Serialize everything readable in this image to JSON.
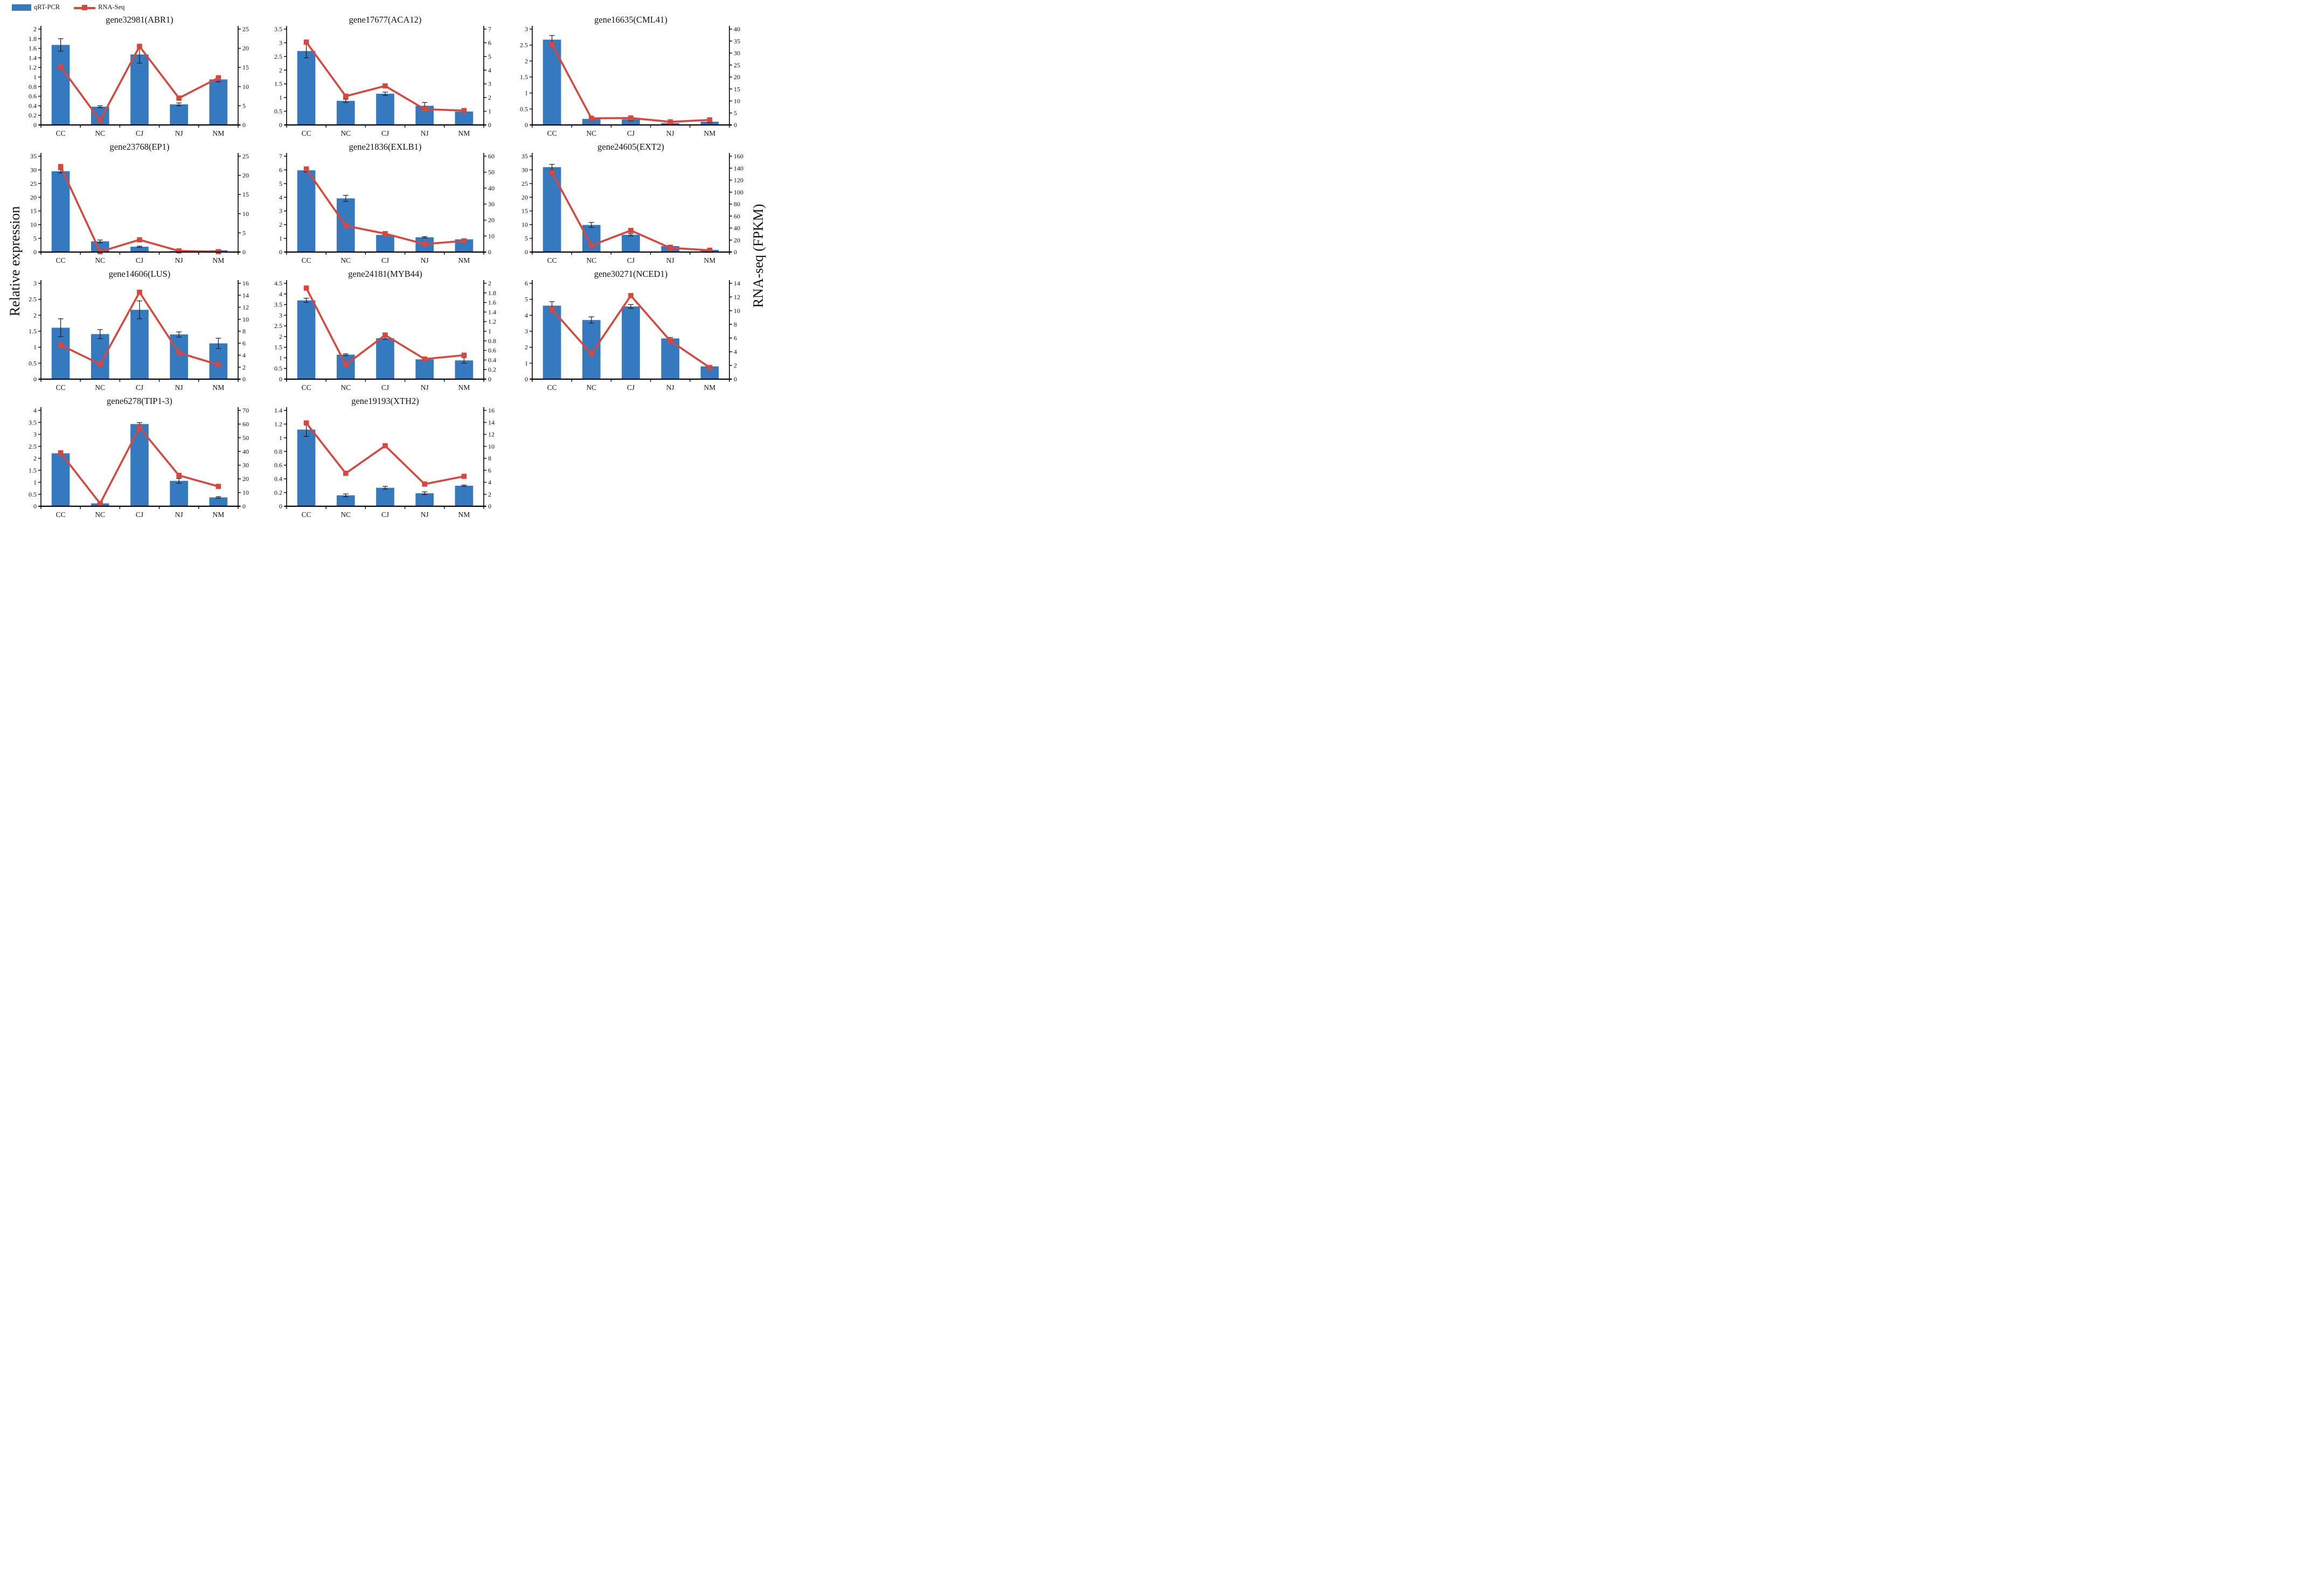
{
  "legend": {
    "qrt_label": "qRT-PCR",
    "rna_label": "RNA-Seq"
  },
  "axis_titles": {
    "left": "Relative expression",
    "right": "RNA-seq (FPKM)"
  },
  "colors": {
    "bar": "#3579BE",
    "line": "#D9473C",
    "error": "#1a1a1a",
    "axis": "#000000"
  },
  "categories": [
    "CC",
    "NC",
    "CJ",
    "NJ",
    "NM"
  ],
  "chart_data": [
    {
      "type": "bar",
      "title": "gene32981(ABR1)",
      "categories": [
        "CC",
        "NC",
        "CJ",
        "NJ",
        "NM"
      ],
      "series": [
        {
          "name": "qRT-PCR",
          "axis": "left",
          "values": [
            1.67,
            0.38,
            1.47,
            0.43,
            0.95
          ],
          "errors": [
            0.13,
            0.02,
            0.18,
            0.03,
            0.05
          ]
        },
        {
          "name": "RNA-Seq",
          "axis": "right",
          "values": [
            15.2,
            1.2,
            20.5,
            7.0,
            12.3
          ]
        }
      ],
      "left_axis": {
        "min": 0,
        "max": 2,
        "step": 0.2
      },
      "right_axis": {
        "min": 0,
        "max": 25,
        "step": 5
      }
    },
    {
      "type": "bar",
      "title": "gene17677(ACA12)",
      "categories": [
        "CC",
        "NC",
        "CJ",
        "NJ",
        "NM"
      ],
      "series": [
        {
          "name": "qRT-PCR",
          "axis": "left",
          "values": [
            2.7,
            0.88,
            1.14,
            0.7,
            0.49
          ],
          "errors": [
            0.25,
            0.06,
            0.06,
            0.12,
            0.03
          ]
        },
        {
          "name": "RNA-Seq",
          "axis": "right",
          "values": [
            6.05,
            2.1,
            2.85,
            1.15,
            1.05
          ]
        }
      ],
      "left_axis": {
        "min": 0,
        "max": 3.5,
        "step": 0.5
      },
      "right_axis": {
        "min": 0,
        "max": 7,
        "step": 1
      }
    },
    {
      "type": "bar",
      "title": "gene16635(CML41)",
      "categories": [
        "CC",
        "NC",
        "CJ",
        "NJ",
        "NM"
      ],
      "series": [
        {
          "name": "qRT-PCR",
          "axis": "left",
          "values": [
            2.67,
            0.19,
            0.18,
            0.06,
            0.1
          ],
          "errors": [
            0.13,
            0.05,
            0.05,
            0.03,
            0.03
          ]
        },
        {
          "name": "RNA-Seq",
          "axis": "right",
          "values": [
            33.7,
            2.8,
            2.9,
            1.3,
            2.1
          ]
        }
      ],
      "left_axis": {
        "min": 0,
        "max": 3,
        "step": 0.5
      },
      "right_axis": {
        "min": 0,
        "max": 40,
        "step": 5
      }
    },
    {
      "type": "bar",
      "title": "gene23768(EP1)",
      "categories": [
        "CC",
        "NC",
        "CJ",
        "NJ",
        "NM"
      ],
      "series": [
        {
          "name": "qRT-PCR",
          "axis": "left",
          "values": [
            29.5,
            3.9,
            1.95,
            0.35,
            0.65
          ],
          "errors": [
            0.6,
            0.5,
            0.2,
            0.1,
            0.15
          ]
        },
        {
          "name": "RNA-Seq",
          "axis": "right",
          "values": [
            22.3,
            0.1,
            3.2,
            0.3,
            0.1
          ]
        }
      ],
      "left_axis": {
        "min": 0,
        "max": 35,
        "step": 5
      },
      "right_axis": {
        "min": 0,
        "max": 25,
        "step": 5
      }
    },
    {
      "type": "bar",
      "title": "gene21836(EXLB1)",
      "categories": [
        "CC",
        "NC",
        "CJ",
        "NJ",
        "NM"
      ],
      "series": [
        {
          "name": "qRT-PCR",
          "axis": "left",
          "values": [
            5.97,
            3.92,
            1.25,
            1.08,
            0.93
          ],
          "errors": [
            0.12,
            0.22,
            0.05,
            0.05,
            0.05
          ]
        },
        {
          "name": "RNA-Seq",
          "axis": "right",
          "values": [
            52,
            16.5,
            11.5,
            5,
            7
          ]
        }
      ],
      "left_axis": {
        "min": 0,
        "max": 7,
        "step": 1
      },
      "right_axis": {
        "min": 0,
        "max": 60,
        "step": 10
      }
    },
    {
      "type": "bar",
      "title": "gene24605(EXT2)",
      "categories": [
        "CC",
        "NC",
        "CJ",
        "NJ",
        "NM"
      ],
      "series": [
        {
          "name": "qRT-PCR",
          "axis": "left",
          "values": [
            31,
            9.9,
            6.3,
            2.2,
            0.8
          ],
          "errors": [
            1.0,
            0.9,
            0.4,
            0.3,
            0.1
          ]
        },
        {
          "name": "RNA-Seq",
          "axis": "right",
          "values": [
            133,
            11,
            36,
            7,
            3
          ]
        }
      ],
      "left_axis": {
        "min": 0,
        "max": 35,
        "step": 5
      },
      "right_axis": {
        "min": 0,
        "max": 160,
        "step": 20
      }
    },
    {
      "type": "bar",
      "title": "gene14606(LUS)",
      "categories": [
        "CC",
        "NC",
        "CJ",
        "NJ",
        "NM"
      ],
      "series": [
        {
          "name": "qRT-PCR",
          "axis": "left",
          "values": [
            1.61,
            1.41,
            2.17,
            1.4,
            1.12
          ],
          "errors": [
            0.28,
            0.14,
            0.28,
            0.08,
            0.16
          ]
        },
        {
          "name": "RNA-Seq",
          "axis": "right",
          "values": [
            5.7,
            2.5,
            14.5,
            4.4,
            2.4
          ]
        }
      ],
      "left_axis": {
        "min": 0,
        "max": 3,
        "step": 0.5
      },
      "right_axis": {
        "min": 0,
        "max": 16,
        "step": 2
      }
    },
    {
      "type": "bar",
      "title": "gene24181(MYB44)",
      "categories": [
        "CC",
        "NC",
        "CJ",
        "NJ",
        "NM"
      ],
      "series": [
        {
          "name": "qRT-PCR",
          "axis": "left",
          "values": [
            3.7,
            1.15,
            1.92,
            0.93,
            0.88
          ],
          "errors": [
            0.1,
            0.04,
            0.04,
            0.08,
            0.13
          ]
        },
        {
          "name": "RNA-Seq",
          "axis": "right",
          "values": [
            1.9,
            0.3,
            0.92,
            0.42,
            0.5
          ]
        }
      ],
      "left_axis": {
        "min": 0,
        "max": 4.5,
        "step": 0.5
      },
      "right_axis": {
        "min": 0,
        "max": 2,
        "step": 0.2
      }
    },
    {
      "type": "bar",
      "title": "gene30271(NCED1)",
      "categories": [
        "CC",
        "NC",
        "CJ",
        "NJ",
        "NM"
      ],
      "series": [
        {
          "name": "qRT-PCR",
          "axis": "left",
          "values": [
            4.6,
            3.7,
            4.55,
            2.55,
            0.8
          ],
          "errors": [
            0.25,
            0.2,
            0.12,
            0.06,
            0.05
          ]
        },
        {
          "name": "RNA-Seq",
          "axis": "right",
          "values": [
            10.2,
            3.7,
            12.2,
            5.6,
            1.7
          ]
        }
      ],
      "left_axis": {
        "min": 0,
        "max": 6,
        "step": 1
      },
      "right_axis": {
        "min": 0,
        "max": 14,
        "step": 2
      }
    },
    {
      "type": "bar",
      "title": "gene6278(TIP1-3)",
      "categories": [
        "CC",
        "NC",
        "CJ",
        "NJ",
        "NM"
      ],
      "series": [
        {
          "name": "qRT-PCR",
          "axis": "left",
          "values": [
            2.21,
            0.12,
            3.43,
            1.06,
            0.37
          ],
          "errors": [
            0.04,
            0.02,
            0.06,
            0.1,
            0.03
          ]
        },
        {
          "name": "RNA-Seq",
          "axis": "right",
          "values": [
            39,
            2,
            57.5,
            22.5,
            14.5
          ]
        }
      ],
      "left_axis": {
        "min": 0,
        "max": 4,
        "step": 0.5
      },
      "right_axis": {
        "min": 0,
        "max": 70,
        "step": 10
      }
    },
    {
      "type": "bar",
      "title": "gene19193(XTH2)",
      "categories": [
        "CC",
        "NC",
        "CJ",
        "NJ",
        "NM"
      ],
      "series": [
        {
          "name": "qRT-PCR",
          "axis": "left",
          "values": [
            1.12,
            0.16,
            0.27,
            0.19,
            0.3
          ],
          "errors": [
            0.1,
            0.02,
            0.02,
            0.02,
            0.01
          ]
        },
        {
          "name": "RNA-Seq",
          "axis": "right",
          "values": [
            13.9,
            5.5,
            10.1,
            3.7,
            5.0
          ]
        }
      ],
      "left_axis": {
        "min": 0,
        "max": 1.4,
        "step": 0.2
      },
      "right_axis": {
        "min": 0,
        "max": 16,
        "step": 2
      }
    }
  ]
}
